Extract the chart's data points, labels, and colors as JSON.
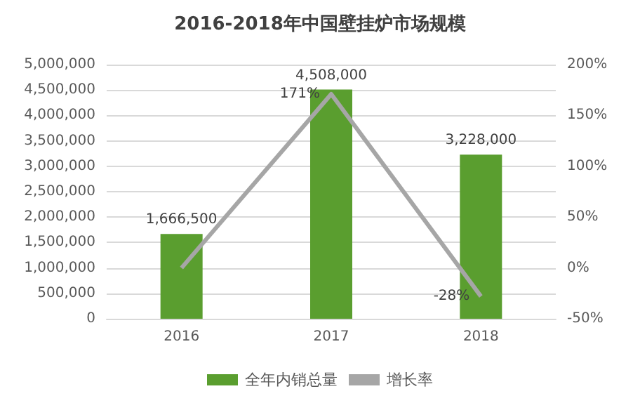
{
  "chart_data": {
    "type": "bar",
    "title": "2016-2018年中国壁挂炉市场规模",
    "categories": [
      "2016",
      "2017",
      "2018"
    ],
    "series": [
      {
        "name": "全年内销总量",
        "color": "#5a9e2f",
        "values": [
          1666500,
          4508000,
          3228000
        ],
        "value_labels": [
          "1,666,500",
          "4,508,000",
          "3,228,000"
        ]
      },
      {
        "name": "增长率",
        "type": "line",
        "axis": "y2",
        "color": "#a6a6a6",
        "values": [
          0,
          171,
          -28
        ],
        "value_labels": [
          null,
          "171%",
          "-28%"
        ]
      }
    ],
    "ylim": [
      0,
      5000000
    ],
    "yticks": [
      {
        "value": 0,
        "label": "0"
      },
      {
        "value": 500000,
        "label": "500,000"
      },
      {
        "value": 1000000,
        "label": "1,000,000"
      },
      {
        "value": 1500000,
        "label": "1,500,000"
      },
      {
        "value": 2000000,
        "label": "2,000,000"
      },
      {
        "value": 2500000,
        "label": "2,500,000"
      },
      {
        "value": 3000000,
        "label": "3,000,000"
      },
      {
        "value": 3500000,
        "label": "3,500,000"
      },
      {
        "value": 4000000,
        "label": "4,000,000"
      },
      {
        "value": 4500000,
        "label": "4,500,000"
      },
      {
        "value": 5000000,
        "label": "5,000,000"
      }
    ],
    "y2lim": [
      -50,
      200
    ],
    "y2ticks": [
      {
        "value": -50,
        "label": "-50%"
      },
      {
        "value": 0,
        "label": "0%"
      },
      {
        "value": 50,
        "label": "50%"
      },
      {
        "value": 100,
        "label": "100%"
      },
      {
        "value": 150,
        "label": "150%"
      },
      {
        "value": 200,
        "label": "200%"
      }
    ],
    "grid": "y",
    "legend": "bottom",
    "marker": "none",
    "line_style": "solid"
  }
}
